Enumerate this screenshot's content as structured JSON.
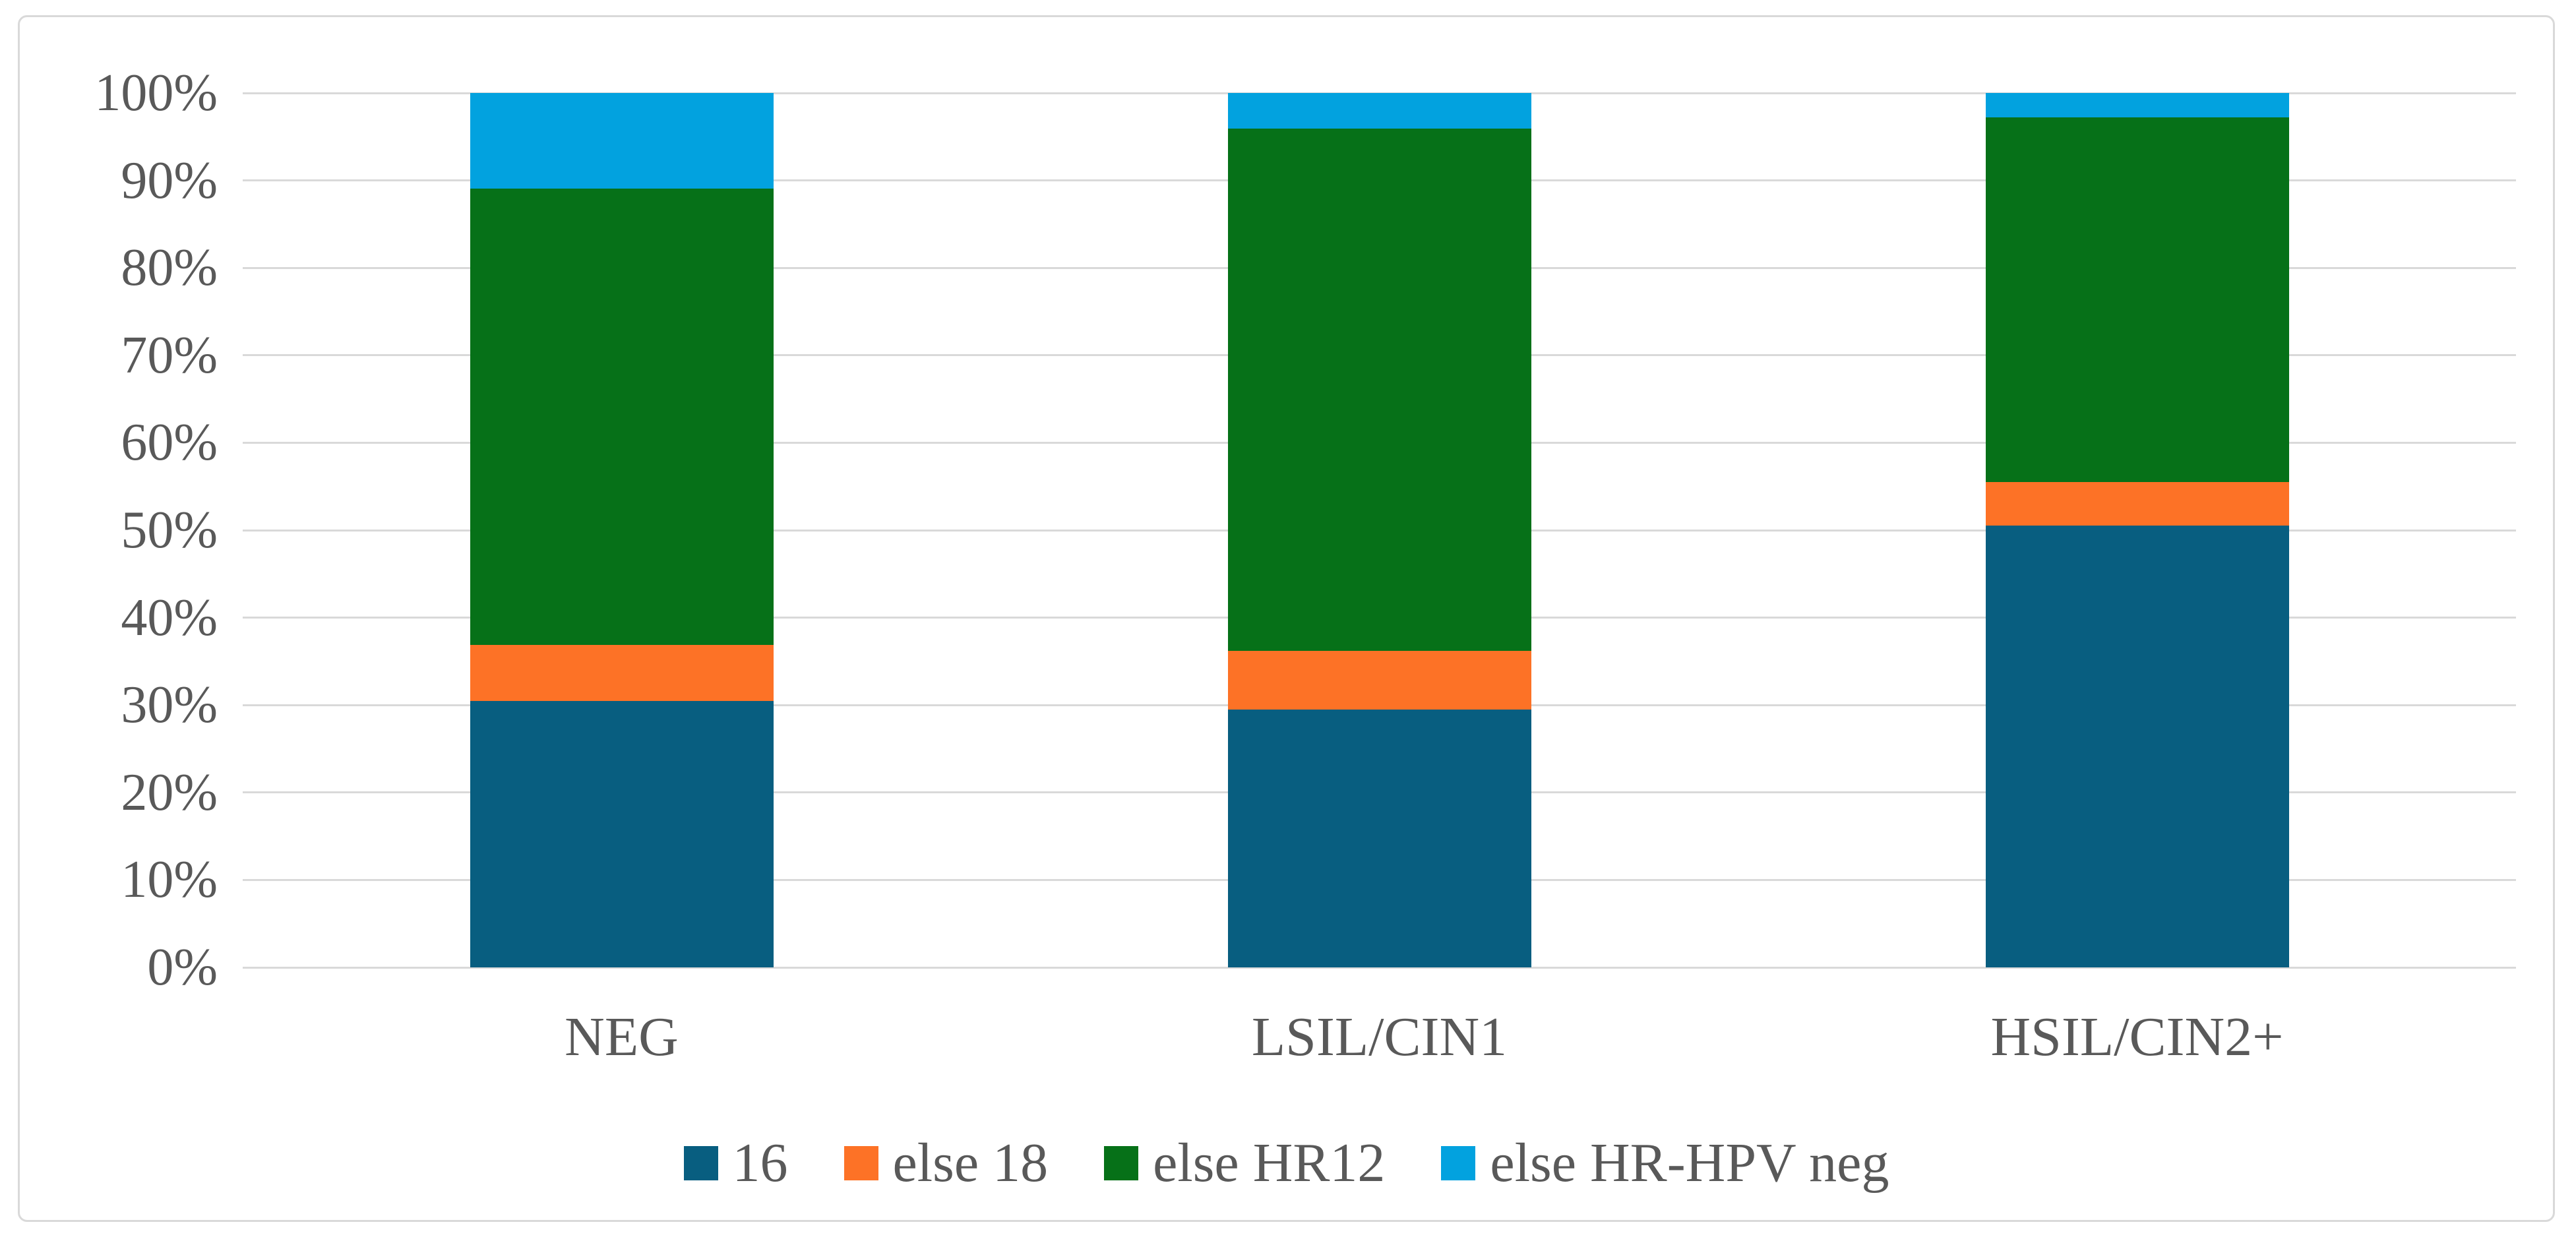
{
  "chart_data": {
    "type": "bar",
    "variant": "stacked-100-percent",
    "title": "",
    "xlabel": "",
    "ylabel": "",
    "categories": [
      "NEG",
      "LSIL/CIN1",
      "HSIL/CIN2+"
    ],
    "series": [
      {
        "name": "16",
        "color": "#085e80",
        "values": [
          30.5,
          29.5,
          50.5
        ]
      },
      {
        "name": "else 18",
        "color": "#fd7226",
        "values": [
          6.4,
          6.7,
          5.0
        ]
      },
      {
        "name": "else HR12",
        "color": "#067118",
        "values": [
          52.2,
          59.7,
          41.7
        ]
      },
      {
        "name": "else HR-HPV neg",
        "color": "#02a2df",
        "values": [
          10.9,
          4.1,
          2.8
        ]
      }
    ],
    "y_ticks": [
      "0%",
      "10%",
      "20%",
      "30%",
      "40%",
      "50%",
      "60%",
      "70%",
      "80%",
      "90%",
      "100%"
    ],
    "ylim": [
      0,
      100
    ],
    "grid": true,
    "legend_position": "bottom",
    "style": {
      "gridline_color": "#d9d9d9",
      "frame_border_color": "#d9d9d9",
      "axis_text_color": "#595959",
      "background_color": "#ffffff"
    }
  }
}
